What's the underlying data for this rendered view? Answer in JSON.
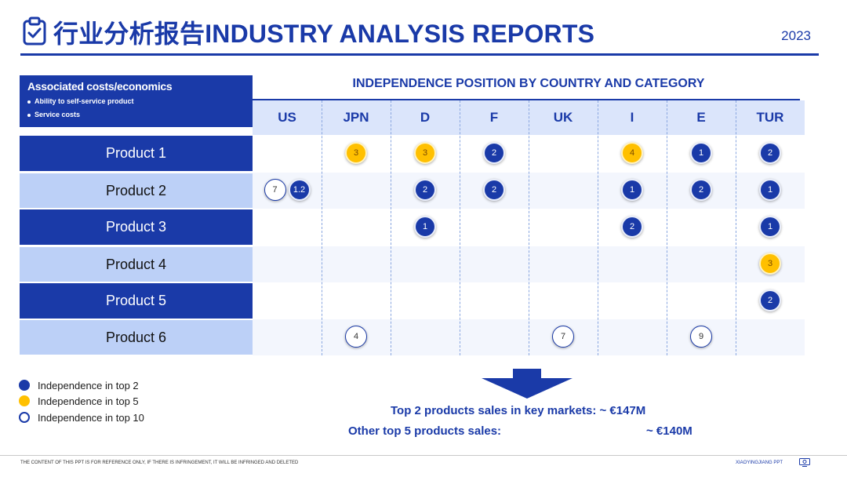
{
  "header": {
    "title": "行业分析报告INDUSTRY ANALYSIS REPORTS",
    "year": "2023",
    "icon": "clipboard-check-icon"
  },
  "associated": {
    "title": "Associated costs/economics",
    "bullets": [
      "Ability to self-service product",
      "Service costs"
    ]
  },
  "table": {
    "title": "INDEPENDENCE POSITION BY COUNTRY AND CATEGORY",
    "countries": [
      "US",
      "JPN",
      "D",
      "F",
      "UK",
      "I",
      "E",
      "TUR"
    ],
    "products": [
      "Product 1",
      "Product 2",
      "Product 3",
      "Product 4",
      "Product 5",
      "Product 6"
    ],
    "cells": [
      [
        null,
        {
          "v": "3",
          "t": "top5"
        },
        {
          "v": "3",
          "t": "top5"
        },
        {
          "v": "2",
          "t": "top2"
        },
        null,
        {
          "v": "4",
          "t": "top5"
        },
        {
          "v": "1",
          "t": "top2"
        },
        {
          "v": "2",
          "t": "top2"
        }
      ],
      [
        [
          {
            "v": "7",
            "t": "top10"
          },
          {
            "v": "1.2",
            "t": "top2"
          }
        ],
        null,
        {
          "v": "2",
          "t": "top2"
        },
        {
          "v": "2",
          "t": "top2"
        },
        null,
        {
          "v": "1",
          "t": "top2"
        },
        {
          "v": "2",
          "t": "top2"
        },
        {
          "v": "1",
          "t": "top2"
        }
      ],
      [
        null,
        null,
        {
          "v": "1",
          "t": "top2"
        },
        null,
        null,
        {
          "v": "2",
          "t": "top2"
        },
        null,
        {
          "v": "1",
          "t": "top2"
        }
      ],
      [
        null,
        null,
        null,
        null,
        null,
        null,
        null,
        {
          "v": "3",
          "t": "top5"
        }
      ],
      [
        null,
        null,
        null,
        null,
        null,
        null,
        null,
        {
          "v": "2",
          "t": "top2"
        }
      ],
      [
        null,
        {
          "v": "4",
          "t": "top10"
        },
        null,
        null,
        {
          "v": "7",
          "t": "top10"
        },
        null,
        {
          "v": "9",
          "t": "top10"
        },
        null
      ]
    ]
  },
  "legend": [
    {
      "type": "top2",
      "label": "Independence in top 2"
    },
    {
      "type": "top5",
      "label": "Independence in top 5"
    },
    {
      "type": "top10",
      "label": "Independence in top 10"
    }
  ],
  "sales": {
    "top2": "Top 2 products sales in key markets: ~ €147M",
    "other_label": "Other top 5 products sales:",
    "other_value": "~ €140M"
  },
  "footer": {
    "left": "THE CONTENT OF THIS PPT IS FOR REFERENCE ONLY, IF THERE IS INFRINGEMENT, IT WILL BE INFRINGED AND DELETED",
    "right": "XIAOYINGJIANG PPT",
    "icon": "presentation-icon"
  },
  "colors": {
    "brand": "#1a3aa8",
    "light_row": "#bcd0f7",
    "header_cell": "#dbe5fb",
    "top5": "#ffc000"
  }
}
